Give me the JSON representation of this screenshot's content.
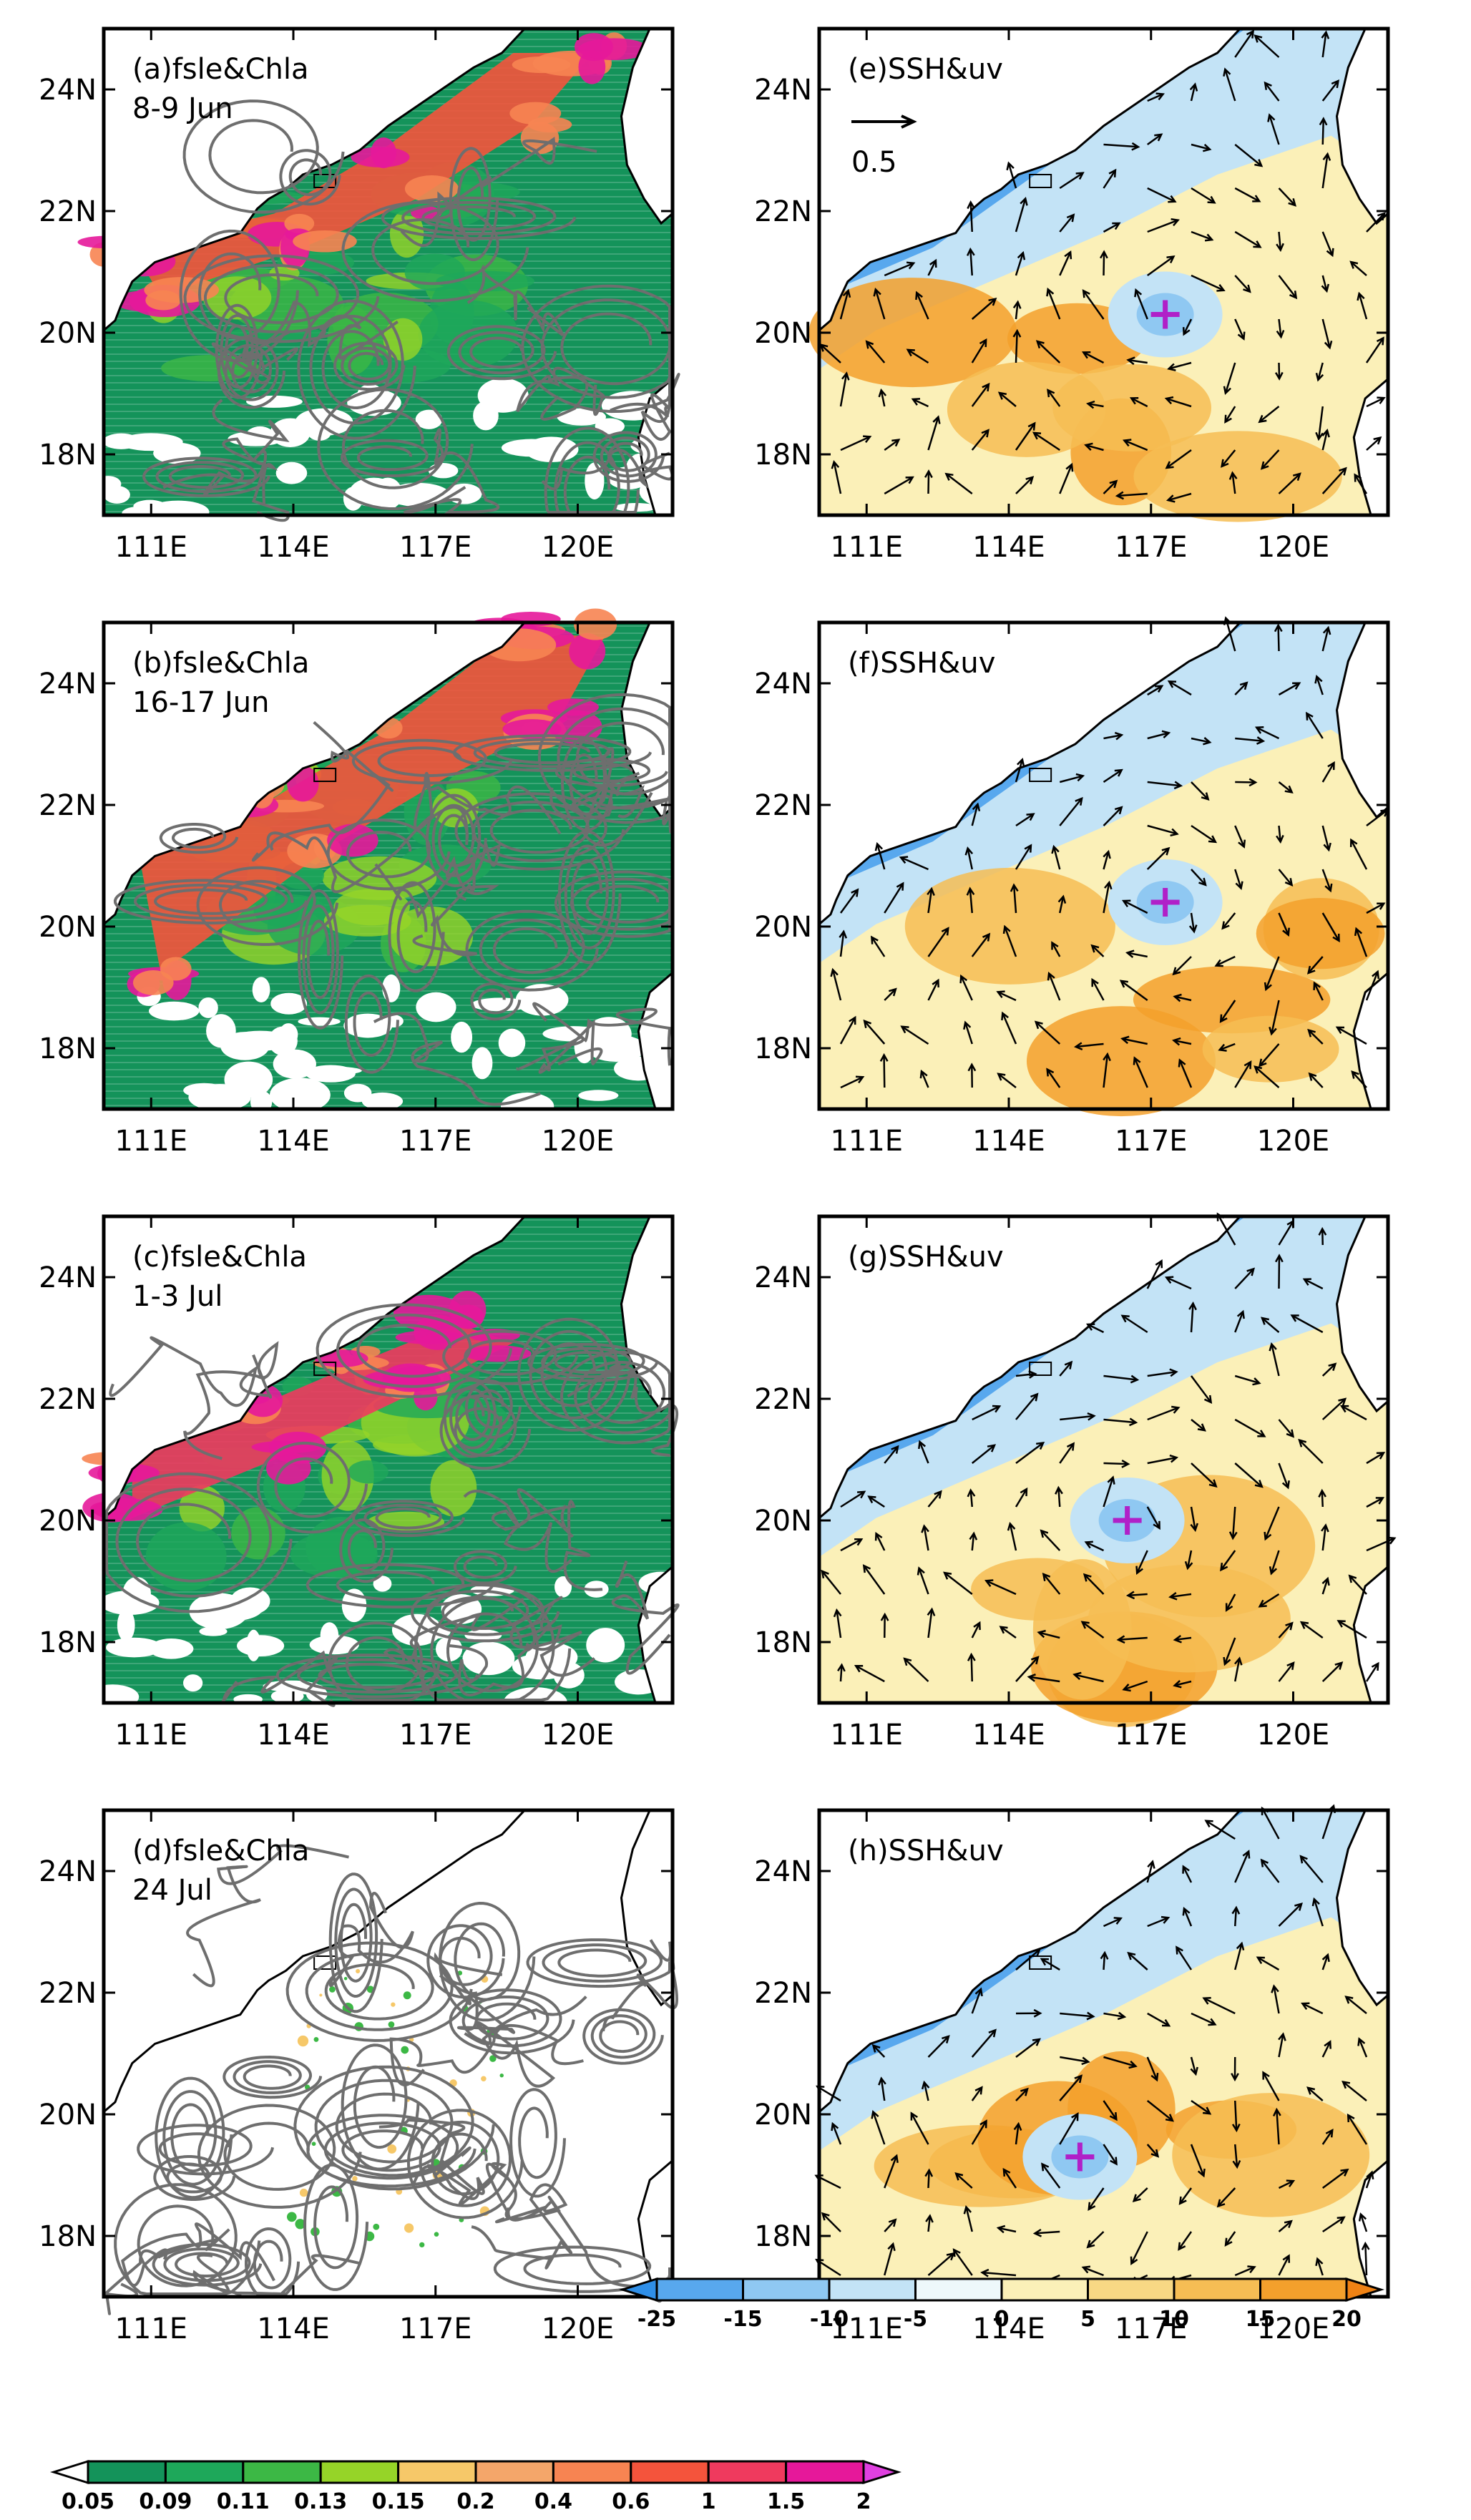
{
  "chart_data": {
    "type": "multi-panel map",
    "x_ticks": [
      "111E",
      "114E",
      "117E",
      "120E"
    ],
    "y_ticks": [
      "24N",
      "22N",
      "20N",
      "18N"
    ],
    "x_range": [
      110,
      122
    ],
    "y_range": [
      17,
      25
    ],
    "left_panels": [
      {
        "label": "(a)fsle&Chla",
        "date": "8-9 Jun"
      },
      {
        "label": "(b)fsle&Chla",
        "date": "16-17 Jun"
      },
      {
        "label": "(c)fsle&Chla",
        "date": "1-3 Jul"
      },
      {
        "label": "(d)fsle&Chla",
        "date": "24 Jul"
      }
    ],
    "right_panels": [
      {
        "label": "(e)SSH&uv",
        "eddy_center": [
          117.3,
          20.3
        ]
      },
      {
        "label": "(f)SSH&uv",
        "eddy_center": [
          117.3,
          20.4
        ]
      },
      {
        "label": "(g)SSH&uv",
        "eddy_center": [
          116.5,
          20.0
        ]
      },
      {
        "label": "(h)SSH&uv",
        "eddy_center": [
          115.5,
          19.3
        ]
      }
    ],
    "reference_vector_label": "0.5",
    "ssh_colorbar": {
      "labels": [
        "-25",
        "-15",
        "-10",
        "-5",
        "0",
        "5",
        "10",
        "15",
        "20"
      ],
      "colors": [
        "#2f8fe8",
        "#58a8ee",
        "#8fc8f2",
        "#c3e3f6",
        "#eef8fb",
        "#fbf0b8",
        "#f8d884",
        "#f6bd54",
        "#f3a02c",
        "#ef8214"
      ]
    },
    "chla_colorbar": {
      "labels": [
        "0.05",
        "0.09",
        "0.11",
        "0.13",
        "0.15",
        "0.2",
        "0.4",
        "0.6",
        "1",
        "1.5",
        "2"
      ],
      "colors": [
        "#ffffff",
        "#14935a",
        "#1ea85a",
        "#3cb845",
        "#96d428",
        "#f6c869",
        "#f4a66a",
        "#f78452",
        "#f4543c",
        "#ef3a5e",
        "#e6189a",
        "#e040e0"
      ]
    }
  }
}
